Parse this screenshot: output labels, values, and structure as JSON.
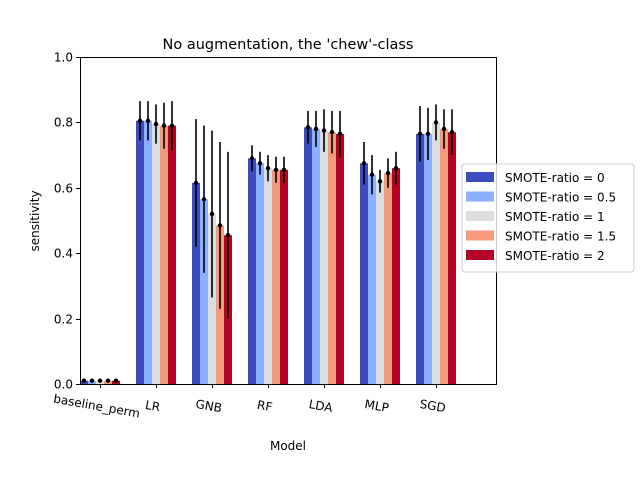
{
  "chart_data": {
    "type": "bar",
    "title": "No augmentation, the 'chew'-class",
    "xlabel": "Model",
    "ylabel": "sensitivity",
    "ylim": [
      0,
      1.0
    ],
    "yticks": [
      "0.0",
      "0.2",
      "0.4",
      "0.6",
      "0.8",
      "1.0"
    ],
    "categories": [
      "baseline_perm",
      "LR",
      "GNB",
      "RF",
      "LDA",
      "MLP",
      "SGD"
    ],
    "legend_position": "right",
    "grid": false,
    "series": [
      {
        "name": "SMOTE-ratio = 0",
        "color": "#3b4cc0",
        "values": [
          0.01,
          0.805,
          0.615,
          0.69,
          0.785,
          0.675,
          0.765
        ],
        "errors": [
          0.005,
          0.06,
          0.195,
          0.04,
          0.05,
          0.065,
          0.085
        ]
      },
      {
        "name": "SMOTE-ratio = 0.5",
        "color": "#8db0fe",
        "values": [
          0.01,
          0.805,
          0.565,
          0.675,
          0.78,
          0.64,
          0.765
        ],
        "errors": [
          0.005,
          0.06,
          0.225,
          0.035,
          0.055,
          0.06,
          0.08
        ]
      },
      {
        "name": "SMOTE-ratio = 1",
        "color": "#dddddd",
        "values": [
          0.01,
          0.795,
          0.52,
          0.66,
          0.775,
          0.62,
          0.8
        ],
        "errors": [
          0.005,
          0.06,
          0.255,
          0.04,
          0.065,
          0.035,
          0.055
        ]
      },
      {
        "name": "SMOTE-ratio = 1.5",
        "color": "#f49a7b",
        "values": [
          0.01,
          0.79,
          0.485,
          0.655,
          0.77,
          0.645,
          0.78
        ],
        "errors": [
          0.005,
          0.07,
          0.255,
          0.04,
          0.065,
          0.045,
          0.06
        ]
      },
      {
        "name": "SMOTE-ratio = 2",
        "color": "#b40426",
        "values": [
          0.01,
          0.79,
          0.455,
          0.655,
          0.765,
          0.66,
          0.77
        ],
        "errors": [
          0.005,
          0.075,
          0.255,
          0.04,
          0.07,
          0.05,
          0.07
        ]
      }
    ]
  }
}
